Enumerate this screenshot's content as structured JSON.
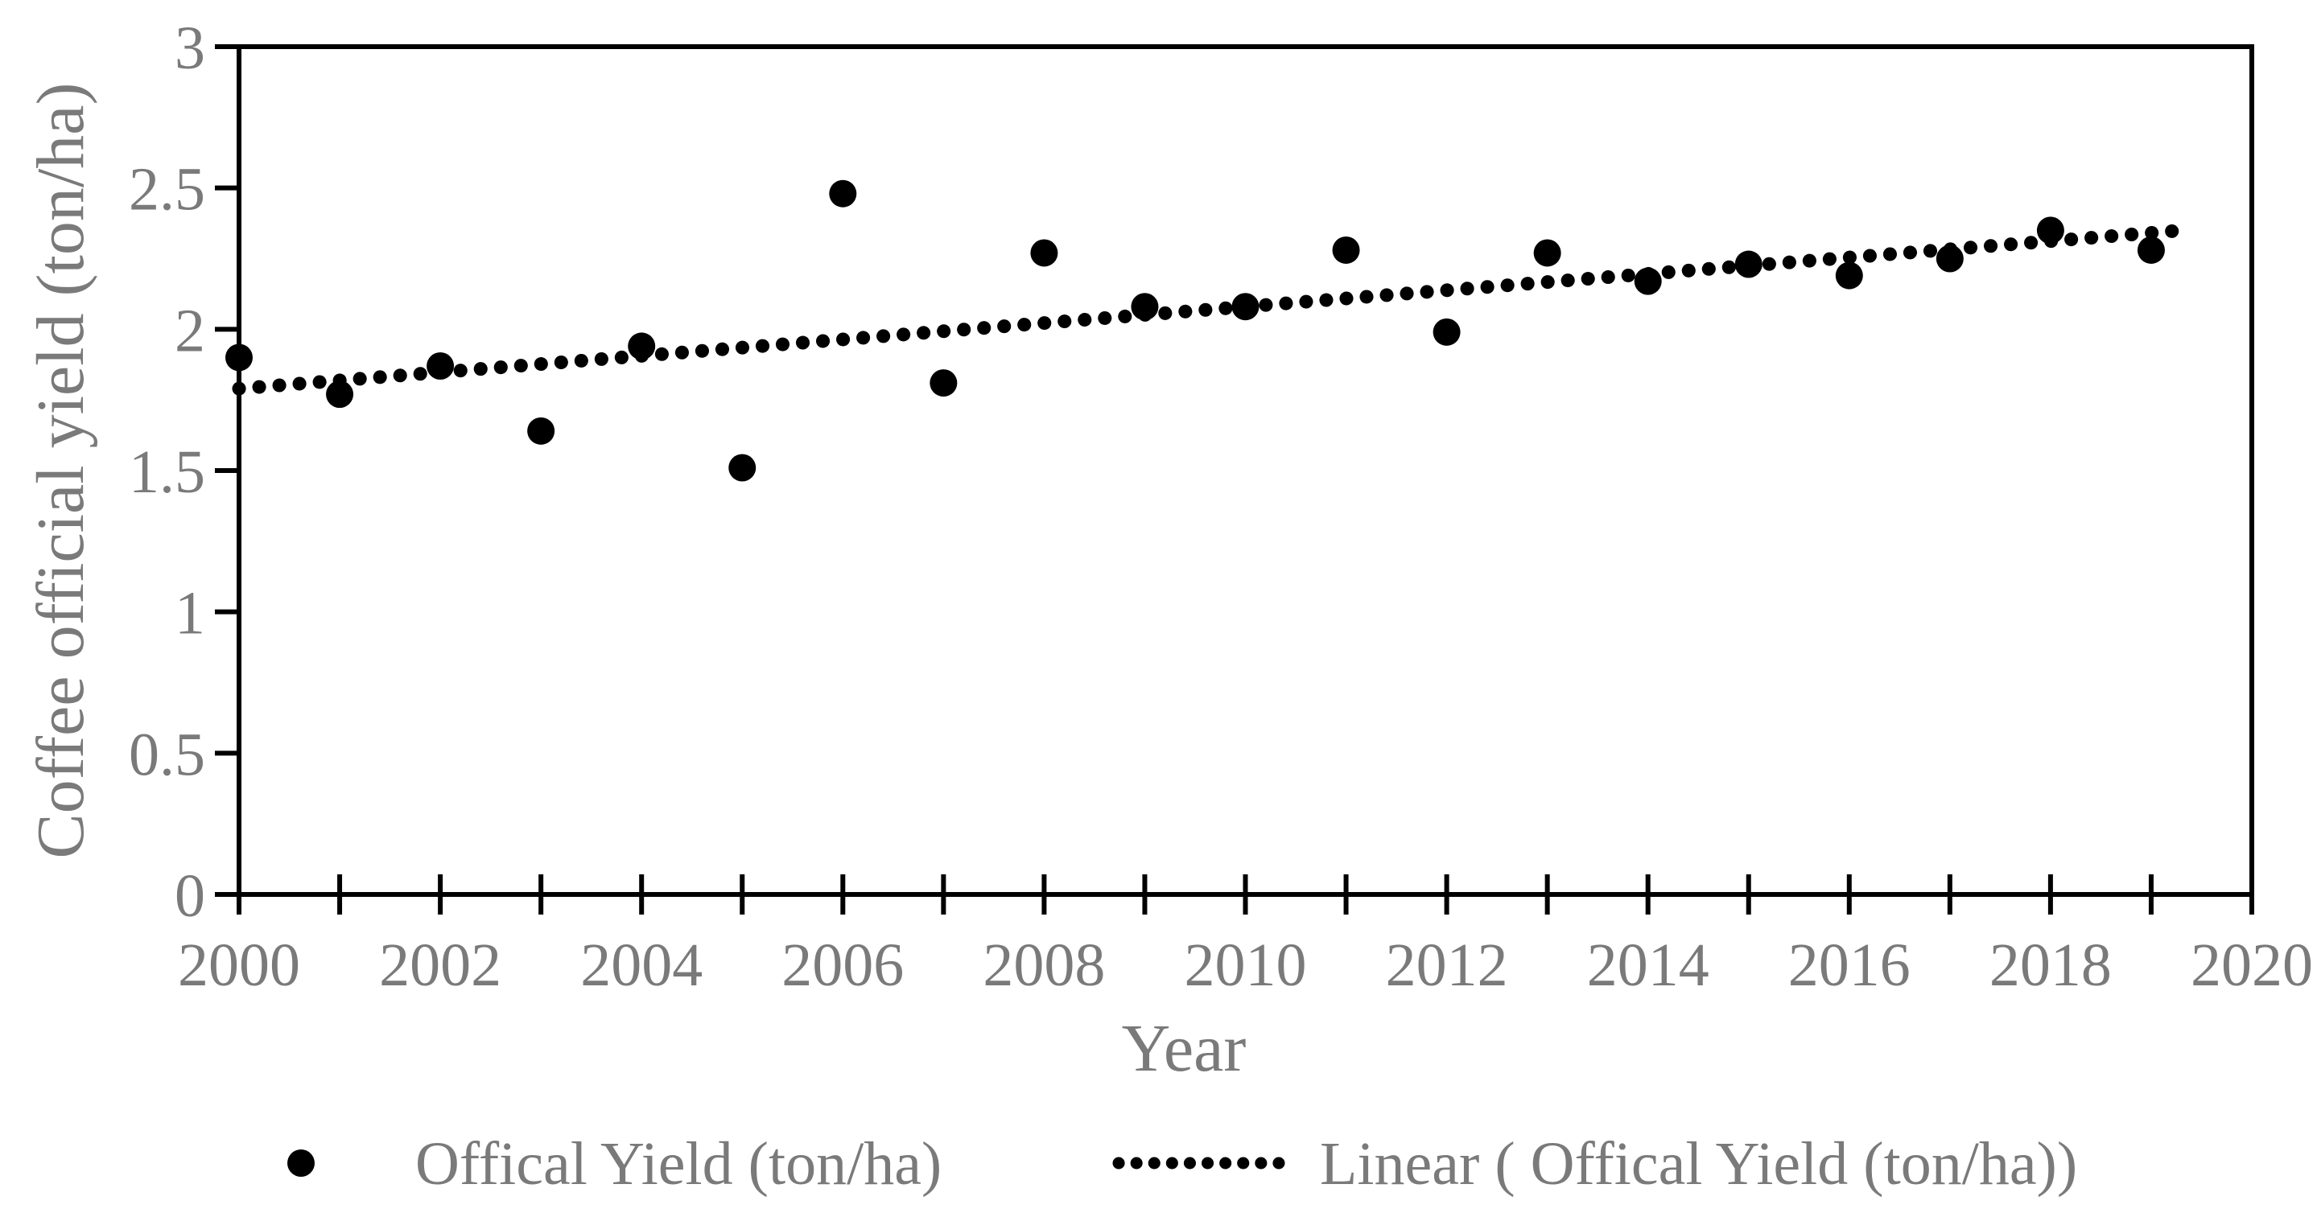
{
  "chart_data": {
    "type": "scatter",
    "title": "",
    "xlabel": "Year",
    "ylabel": "Coffee official yield (ton/ha)",
    "xlim": [
      2000,
      2020
    ],
    "ylim": [
      0,
      3
    ],
    "grid": false,
    "legend_position": "bottom",
    "x_tick_step_label": 2,
    "x_tick_step_minor": 1,
    "y_tick_step": 0.5,
    "x_tick_labels": [
      "2000",
      "2002",
      "2004",
      "2006",
      "2008",
      "2010",
      "2012",
      "2014",
      "2016",
      "2018",
      "2020"
    ],
    "y_tick_labels": [
      "0",
      "0.5",
      "1",
      "1.5",
      "2",
      "2.5",
      "3"
    ],
    "x": [
      2000,
      2001,
      2002,
      2003,
      2004,
      2005,
      2006,
      2007,
      2008,
      2009,
      2010,
      2011,
      2012,
      2013,
      2014,
      2015,
      2016,
      2017,
      2018,
      2019
    ],
    "series": [
      {
        "name": "Offical Yield (ton/ha)",
        "marker": "filled-circle",
        "color": "#000000",
        "values": [
          1.9,
          1.77,
          1.87,
          1.64,
          1.94,
          1.51,
          2.48,
          1.81,
          2.27,
          2.08,
          2.08,
          2.28,
          1.99,
          2.27,
          2.17,
          2.23,
          2.19,
          2.25,
          2.35,
          2.28
        ]
      }
    ],
    "trendline": {
      "name": "Linear ( Offical Yield (ton/ha))",
      "type": "linear",
      "style": "dotted",
      "color": "#000000",
      "value_at_2000": 1.79,
      "slope_per_year": 0.029,
      "start_year": 2000,
      "end_year": 2019.3
    }
  },
  "legend": {
    "items": [
      {
        "label": "Offical Yield (ton/ha)",
        "marker": "dot"
      },
      {
        "label": "Linear ( Offical Yield (ton/ha))",
        "marker": "dotted-line"
      }
    ]
  },
  "colors": {
    "series": "#000000",
    "axis": "#000000",
    "tick_text": "#7a7a7a",
    "background": "#ffffff"
  }
}
